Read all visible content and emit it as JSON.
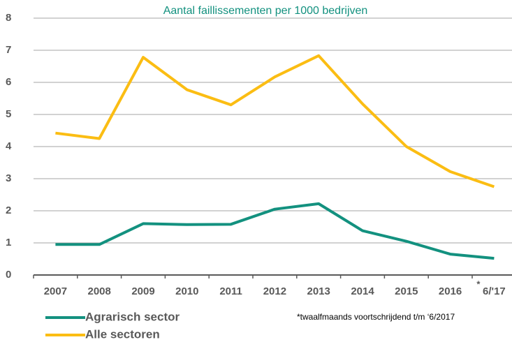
{
  "chart_data": {
    "type": "line",
    "title": "Aantal faillissementen per 1000 bedrijven",
    "categories": [
      "2007",
      "2008",
      "2009",
      "2010",
      "2011",
      "2012",
      "2013",
      "2014",
      "2015",
      "2016",
      "6/'17"
    ],
    "category_marker": "*",
    "series": [
      {
        "name": "Agrarisch sector",
        "color": "#13917f",
        "values": [
          0.95,
          0.95,
          1.6,
          1.57,
          1.58,
          2.05,
          2.22,
          1.38,
          1.05,
          0.65,
          0.52
        ]
      },
      {
        "name": "Alle sectoren",
        "color": "#fbbd13",
        "values": [
          4.42,
          4.25,
          6.78,
          5.77,
          5.3,
          6.17,
          6.83,
          5.33,
          4.0,
          3.22,
          2.75
        ]
      }
    ],
    "ylim": [
      0,
      8
    ],
    "yticks": [
      0,
      1,
      2,
      3,
      4,
      5,
      6,
      7,
      8
    ],
    "grid": true,
    "footnote": "*twaalfmaands voortschrijdend t/m ‘6/2017"
  }
}
